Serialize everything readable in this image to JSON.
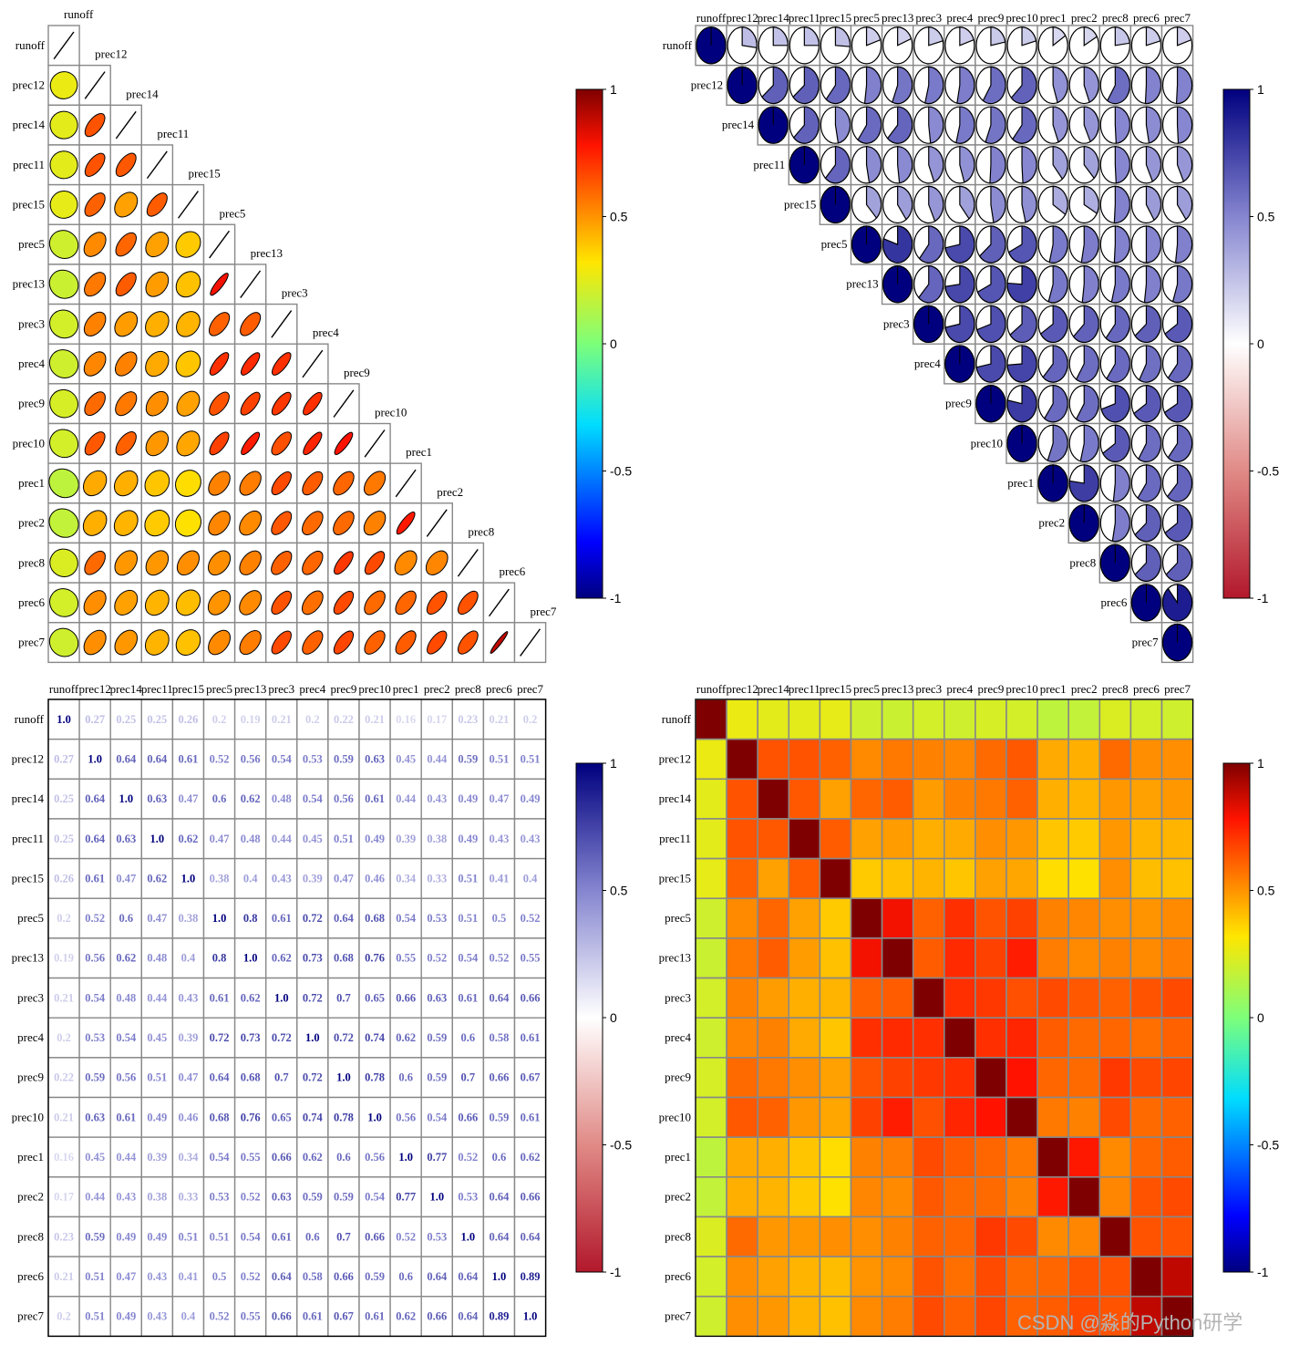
{
  "chart_data": {
    "type": "heatmap",
    "variables": [
      "runoff",
      "prec12",
      "prec14",
      "prec11",
      "prec15",
      "prec5",
      "prec13",
      "prec3",
      "prec4",
      "prec9",
      "prec10",
      "prec1",
      "prec2",
      "prec8",
      "prec6",
      "prec7"
    ],
    "matrix": [
      [
        1.0,
        0.27,
        0.25,
        0.25,
        0.26,
        0.2,
        0.19,
        0.21,
        0.2,
        0.22,
        0.21,
        0.16,
        0.17,
        0.23,
        0.21,
        0.2
      ],
      [
        0.27,
        1.0,
        0.64,
        0.64,
        0.61,
        0.52,
        0.56,
        0.54,
        0.53,
        0.59,
        0.63,
        0.45,
        0.44,
        0.59,
        0.51,
        0.51
      ],
      [
        0.25,
        0.64,
        1.0,
        0.63,
        0.47,
        0.6,
        0.62,
        0.48,
        0.54,
        0.56,
        0.61,
        0.44,
        0.43,
        0.49,
        0.47,
        0.49
      ],
      [
        0.25,
        0.64,
        0.63,
        1.0,
        0.62,
        0.47,
        0.48,
        0.44,
        0.45,
        0.51,
        0.49,
        0.39,
        0.38,
        0.49,
        0.43,
        0.43
      ],
      [
        0.26,
        0.61,
        0.47,
        0.62,
        1.0,
        0.38,
        0.4,
        0.43,
        0.39,
        0.47,
        0.46,
        0.34,
        0.33,
        0.51,
        0.41,
        0.4
      ],
      [
        0.2,
        0.52,
        0.6,
        0.47,
        0.38,
        1.0,
        0.8,
        0.61,
        0.72,
        0.64,
        0.68,
        0.54,
        0.53,
        0.51,
        0.5,
        0.52
      ],
      [
        0.19,
        0.56,
        0.62,
        0.48,
        0.4,
        0.8,
        1.0,
        0.62,
        0.73,
        0.68,
        0.76,
        0.55,
        0.52,
        0.54,
        0.52,
        0.55
      ],
      [
        0.21,
        0.54,
        0.48,
        0.44,
        0.43,
        0.61,
        0.62,
        1.0,
        0.72,
        0.7,
        0.65,
        0.66,
        0.63,
        0.61,
        0.64,
        0.66
      ],
      [
        0.2,
        0.53,
        0.54,
        0.45,
        0.39,
        0.72,
        0.73,
        0.72,
        1.0,
        0.72,
        0.74,
        0.62,
        0.59,
        0.6,
        0.58,
        0.61
      ],
      [
        0.22,
        0.59,
        0.56,
        0.51,
        0.47,
        0.64,
        0.68,
        0.7,
        0.72,
        1.0,
        0.78,
        0.6,
        0.59,
        0.7,
        0.66,
        0.67
      ],
      [
        0.21,
        0.63,
        0.61,
        0.49,
        0.46,
        0.68,
        0.76,
        0.65,
        0.74,
        0.78,
        1.0,
        0.56,
        0.54,
        0.66,
        0.59,
        0.61
      ],
      [
        0.16,
        0.45,
        0.44,
        0.39,
        0.34,
        0.54,
        0.55,
        0.66,
        0.62,
        0.6,
        0.56,
        1.0,
        0.77,
        0.52,
        0.6,
        0.62
      ],
      [
        0.17,
        0.44,
        0.43,
        0.38,
        0.33,
        0.53,
        0.52,
        0.63,
        0.59,
        0.59,
        0.54,
        0.77,
        1.0,
        0.53,
        0.64,
        0.66
      ],
      [
        0.23,
        0.59,
        0.49,
        0.49,
        0.51,
        0.51,
        0.54,
        0.61,
        0.6,
        0.7,
        0.66,
        0.52,
        0.53,
        1.0,
        0.64,
        0.64
      ],
      [
        0.21,
        0.51,
        0.47,
        0.43,
        0.41,
        0.5,
        0.52,
        0.64,
        0.58,
        0.66,
        0.59,
        0.6,
        0.64,
        0.64,
        1.0,
        0.89
      ],
      [
        0.2,
        0.51,
        0.49,
        0.43,
        0.4,
        0.52,
        0.55,
        0.66,
        0.61,
        0.67,
        0.61,
        0.62,
        0.66,
        0.64,
        0.89,
        1.0
      ]
    ],
    "number_labels": [
      [
        "1.0",
        "0.27",
        "0.25",
        "0.25",
        "0.26",
        "0.2",
        "0.19",
        "0.21",
        "0.2",
        "0.22",
        "0.21",
        "0.16",
        "0.17",
        "0.23",
        "0.21",
        "0.2"
      ],
      [
        "0.27",
        "1.0",
        "0.64",
        "0.64",
        "0.61",
        "0.52",
        "0.56",
        "0.54",
        "0.53",
        "0.59",
        "0.63",
        "0.45",
        "0.44",
        "0.59",
        "0.51",
        "0.51"
      ],
      [
        "0.25",
        "0.64",
        "1.0",
        "0.63",
        "0.47",
        "0.6",
        "0.62",
        "0.48",
        "0.54",
        "0.56",
        "0.61",
        "0.44",
        "0.43",
        "0.49",
        "0.47",
        "0.49"
      ],
      [
        "0.25",
        "0.64",
        "0.63",
        "1.0",
        "0.62",
        "0.47",
        "0.48",
        "0.44",
        "0.45",
        "0.51",
        "0.49",
        "0.39",
        "0.38",
        "0.49",
        "0.43",
        "0.43"
      ],
      [
        "0.26",
        "0.61",
        "0.47",
        "0.62",
        "1.0",
        "0.38",
        "0.4",
        "0.43",
        "0.39",
        "0.47",
        "0.46",
        "0.34",
        "0.33",
        "0.51",
        "0.41",
        "0.4"
      ],
      [
        "0.2",
        "0.52",
        "0.6",
        "0.47",
        "0.38",
        "1.0",
        "0.8",
        "0.61",
        "0.72",
        "0.64",
        "0.68",
        "0.54",
        "0.53",
        "0.51",
        "0.5",
        "0.52"
      ],
      [
        "0.19",
        "0.56",
        "0.62",
        "0.48",
        "0.4",
        "0.8",
        "1.0",
        "0.62",
        "0.73",
        "0.68",
        "0.76",
        "0.55",
        "0.52",
        "0.54",
        "0.52",
        "0.55"
      ],
      [
        "0.21",
        "0.54",
        "0.48",
        "0.44",
        "0.43",
        "0.61",
        "0.62",
        "1.0",
        "0.72",
        "0.7",
        "0.65",
        "0.66",
        "0.63",
        "0.61",
        "0.64",
        "0.66"
      ],
      [
        "0.2",
        "0.53",
        "0.54",
        "0.45",
        "0.39",
        "0.72",
        "0.73",
        "0.72",
        "1.0",
        "0.72",
        "0.74",
        "0.62",
        "0.59",
        "0.6",
        "0.58",
        "0.61"
      ],
      [
        "0.22",
        "0.59",
        "0.56",
        "0.51",
        "0.47",
        "0.64",
        "0.68",
        "0.7",
        "0.72",
        "1.0",
        "0.78",
        "0.6",
        "0.59",
        "0.7",
        "0.66",
        "0.67"
      ],
      [
        "0.21",
        "0.63",
        "0.61",
        "0.49",
        "0.46",
        "0.68",
        "0.76",
        "0.65",
        "0.74",
        "0.78",
        "1.0",
        "0.56",
        "0.54",
        "0.66",
        "0.59",
        "0.61"
      ],
      [
        "0.16",
        "0.45",
        "0.44",
        "0.39",
        "0.34",
        "0.54",
        "0.55",
        "0.66",
        "0.62",
        "0.6",
        "0.56",
        "1.0",
        "0.77",
        "0.52",
        "0.6",
        "0.62"
      ],
      [
        "0.17",
        "0.44",
        "0.43",
        "0.38",
        "0.33",
        "0.53",
        "0.52",
        "0.63",
        "0.59",
        "0.59",
        "0.54",
        "0.77",
        "1.0",
        "0.53",
        "0.64",
        "0.66"
      ],
      [
        "0.23",
        "0.59",
        "0.49",
        "0.49",
        "0.51",
        "0.51",
        "0.54",
        "0.61",
        "0.6",
        "0.7",
        "0.66",
        "0.52",
        "0.53",
        "1.0",
        "0.64",
        "0.64"
      ],
      [
        "0.21",
        "0.51",
        "0.47",
        "0.43",
        "0.41",
        "0.5",
        "0.52",
        "0.64",
        "0.58",
        "0.66",
        "0.59",
        "0.6",
        "0.64",
        "0.64",
        "1.0",
        "0.89"
      ],
      [
        "0.2",
        "0.51",
        "0.49",
        "0.43",
        "0.4",
        "0.52",
        "0.55",
        "0.66",
        "0.61",
        "0.67",
        "0.61",
        "0.62",
        "0.66",
        "0.64",
        "0.89",
        "1.0"
      ]
    ],
    "panels": [
      {
        "type": "ellipse",
        "triangle": "lower",
        "cmap": "jet",
        "colorbar_ticks": [
          "1",
          "0.5",
          "0",
          "-0.5",
          "-1"
        ],
        "vlim": [
          -1,
          1
        ]
      },
      {
        "type": "pie",
        "triangle": "upper",
        "cmap": "RdBu-blue-high",
        "colorbar_ticks": [
          "1",
          "0.5",
          "0",
          "-0.5",
          "-1"
        ],
        "vlim": [
          -1,
          1
        ]
      },
      {
        "type": "number",
        "triangle": "full",
        "cmap": "RdBu-blue-high",
        "colorbar_ticks": [
          "1",
          "0.5",
          "0",
          "-0.5",
          "-1"
        ],
        "vlim": [
          -1,
          1
        ]
      },
      {
        "type": "square",
        "triangle": "full",
        "cmap": "jet",
        "colorbar_ticks": [
          "1",
          "0.5",
          "0",
          "-0.5",
          "-1"
        ],
        "vlim": [
          -1,
          1
        ]
      }
    ]
  },
  "watermark": "CSDN @淼的Python研学"
}
